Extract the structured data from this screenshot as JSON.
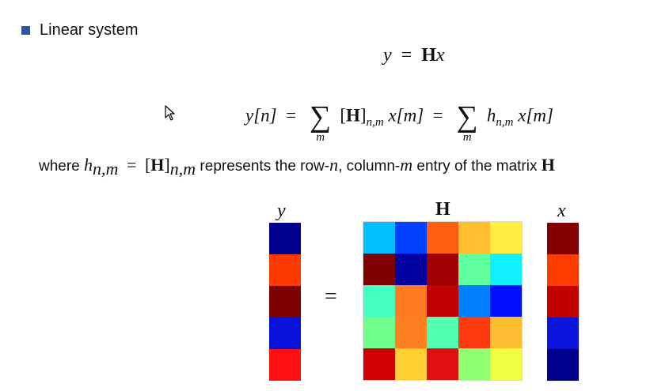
{
  "heading": "Linear system",
  "colors": {
    "bullet": "#2a56a8"
  },
  "eq1": {
    "y": "y",
    "eq": "=",
    "H": "H",
    "x": "x"
  },
  "eq2": {
    "lhs": "y[n]",
    "eq1": "=",
    "sum": "∑",
    "sum_sub": "m",
    "H": "H",
    "bracket_open": "[",
    "bracket_close": "]",
    "sub_nm": "n,m",
    "xm": "x[m]",
    "eq2": "=",
    "h": "h",
    "tail": "x[m]"
  },
  "where_line": {
    "where": "where",
    "h": "h",
    "sub": "n,m",
    "eq": "=",
    "H": "H",
    "sub2": "n,m",
    "text1": "represents the row-",
    "n": "n",
    "text2": ", column-",
    "m": "m",
    "text3": "entry of the matrix",
    "H2": "H"
  },
  "figure": {
    "y_label": "y",
    "H_label": "H",
    "x_label": "x",
    "equals": "=",
    "y_vec": [
      "#00008f",
      "#ff3a00",
      "#7f0000",
      "#0a10dc",
      "#ff1010"
    ],
    "x_vec": [
      "#830000",
      "#ff3b00",
      "#c20000",
      "#0a14dc",
      "#00008f"
    ],
    "H": [
      [
        "#00c0ff",
        "#0040ff",
        "#ff6010",
        "#ffbf30",
        "#ffee40"
      ],
      [
        "#800000",
        "#0000a0",
        "#a00000",
        "#60ffa0",
        "#10f0ff"
      ],
      [
        "#40ffc0",
        "#ff7a20",
        "#c00000",
        "#0080ff",
        "#0010ff"
      ],
      [
        "#70ff8a",
        "#ff8020",
        "#50ffb0",
        "#ff3a10",
        "#ffbe30"
      ],
      [
        "#d00000",
        "#ffd030",
        "#e01010",
        "#90ff70",
        "#f0ff40"
      ]
    ]
  }
}
